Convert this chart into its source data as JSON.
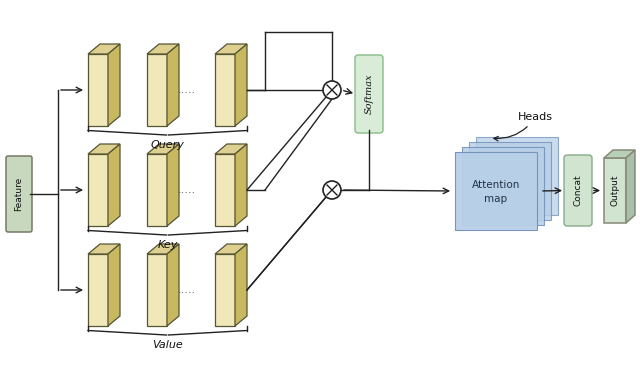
{
  "bg_color": "#ffffff",
  "feature_fill": "#c8d8be",
  "feature_edge": "#777766",
  "block_face": "#f0e8b8",
  "block_side": "#c8b860",
  "block_top": "#ddd090",
  "softmax_fill": "#d8ecd8",
  "softmax_edge": "#88bb88",
  "attn_fill": "#b8cfe8",
  "attn_edge": "#7090b8",
  "concat_fill": "#d0e4d0",
  "concat_edge": "#88aa88",
  "output_fill": "#d0e4d0",
  "output_edge": "#888877",
  "output_side": "#a8c0a8",
  "output_top": "#b8d0b8",
  "line_col": "#222222",
  "text_col": "#111111",
  "row_labels": [
    "Query",
    "Key",
    "Value"
  ],
  "softmax_label": "Softmax",
  "attn_label1": "Attention",
  "attn_label2": "map",
  "heads_label": "Heads",
  "concat_label": "Concat",
  "output_label": "Output",
  "feature_label": "Feature"
}
